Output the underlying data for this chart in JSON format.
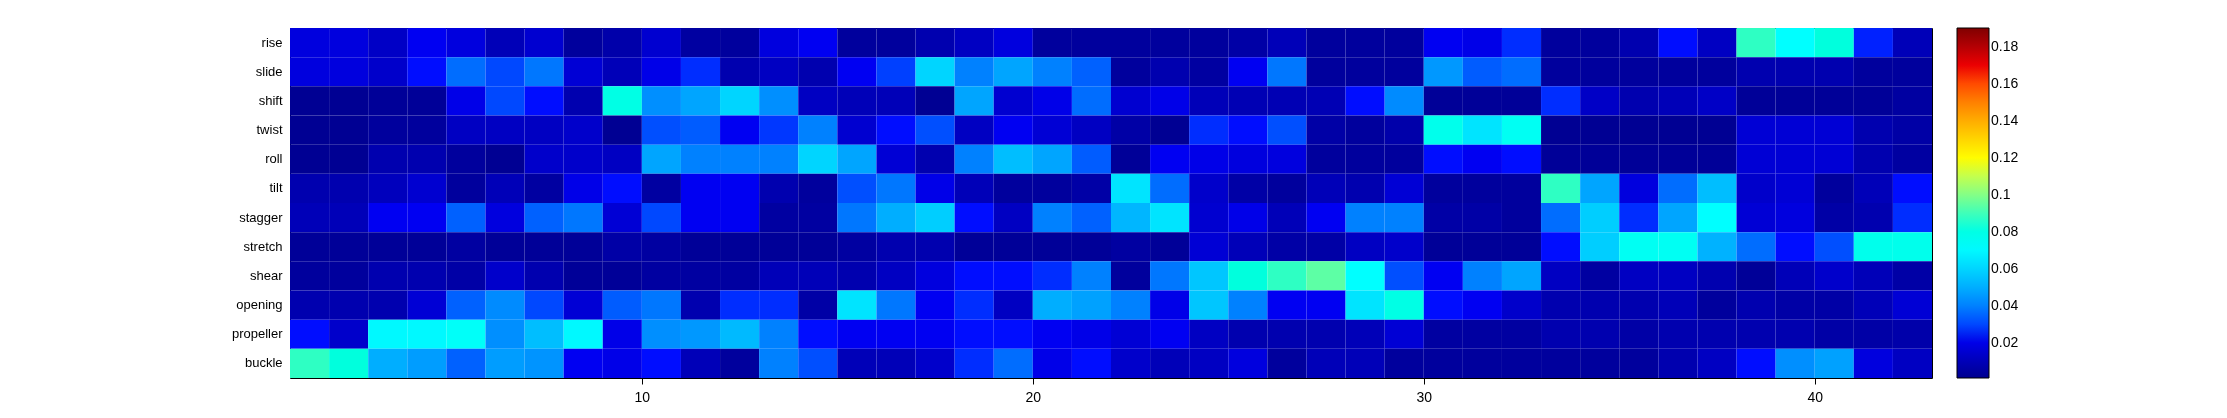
{
  "chart_data": {
    "type": "heatmap",
    "x": [
      1.5,
      2.5,
      3.5,
      4.5,
      5.5,
      6.5,
      7.5,
      8.5,
      9.5,
      10.5,
      11.5,
      12.5,
      13.5,
      14.5,
      15.5,
      16.5,
      17.5,
      18.5,
      19.5,
      20.5,
      21.5,
      22.5,
      23.5,
      24.5,
      25.5,
      26.5,
      27.5,
      28.5,
      29.5,
      30.5,
      31.5,
      32.5,
      33.5,
      34.5,
      35.5,
      36.5,
      37.5,
      38.5,
      39.5,
      40.5,
      41.5,
      42.5
    ],
    "xlim": [
      1,
      43
    ],
    "xticks": [
      10,
      20,
      30,
      40
    ],
    "y_categories": [
      "rise",
      "slide",
      "shift",
      "twist",
      "roll",
      "tilt",
      "stagger",
      "stretch",
      "shear",
      "opening",
      "propeller",
      "buckle"
    ],
    "cells": [
      [
        0.018,
        0.018,
        0.013,
        0.022,
        0.018,
        0.01,
        0.015,
        0.004,
        0.007,
        0.015,
        0.005,
        0.004,
        0.018,
        0.022,
        0.004,
        0.004,
        0.008,
        0.012,
        0.018,
        0.004,
        0.004,
        0.004,
        0.004,
        0.004,
        0.006,
        0.01,
        0.004,
        0.004,
        0.004,
        0.022,
        0.02,
        0.027,
        0.004,
        0.004,
        0.008,
        0.025,
        0.012,
        0.088,
        0.072,
        0.082,
        0.026,
        0.01
      ],
      [
        0.018,
        0.018,
        0.014,
        0.025,
        0.036,
        0.03,
        0.038,
        0.016,
        0.01,
        0.02,
        0.027,
        0.008,
        0.012,
        0.008,
        0.022,
        0.029,
        0.06,
        0.04,
        0.048,
        0.04,
        0.034,
        0.004,
        0.008,
        0.005,
        0.022,
        0.038,
        0.004,
        0.004,
        0.004,
        0.045,
        0.033,
        0.036,
        0.004,
        0.004,
        0.004,
        0.004,
        0.004,
        0.008,
        0.008,
        0.008,
        0.004,
        0.004
      ],
      [
        0.002,
        0.002,
        0.003,
        0.003,
        0.02,
        0.03,
        0.025,
        0.008,
        0.08,
        0.043,
        0.048,
        0.06,
        0.043,
        0.012,
        0.01,
        0.01,
        0.002,
        0.048,
        0.015,
        0.02,
        0.036,
        0.015,
        0.02,
        0.01,
        0.009,
        0.009,
        0.009,
        0.025,
        0.042,
        0.003,
        0.003,
        0.003,
        0.027,
        0.013,
        0.008,
        0.01,
        0.013,
        0.003,
        0.003,
        0.003,
        0.003,
        0.005
      ],
      [
        0.002,
        0.002,
        0.004,
        0.004,
        0.012,
        0.012,
        0.012,
        0.014,
        0.002,
        0.031,
        0.033,
        0.022,
        0.028,
        0.04,
        0.015,
        0.025,
        0.031,
        0.012,
        0.022,
        0.016,
        0.012,
        0.006,
        0.002,
        0.027,
        0.025,
        0.031,
        0.006,
        0.004,
        0.007,
        0.078,
        0.064,
        0.076,
        0.002,
        0.002,
        0.002,
        0.002,
        0.002,
        0.016,
        0.016,
        0.016,
        0.008,
        0.006
      ],
      [
        0.002,
        0.002,
        0.008,
        0.008,
        0.004,
        0.002,
        0.014,
        0.014,
        0.012,
        0.048,
        0.04,
        0.04,
        0.04,
        0.06,
        0.048,
        0.016,
        0.008,
        0.04,
        0.054,
        0.048,
        0.033,
        0.003,
        0.022,
        0.02,
        0.018,
        0.018,
        0.004,
        0.004,
        0.004,
        0.025,
        0.022,
        0.025,
        0.003,
        0.003,
        0.003,
        0.003,
        0.003,
        0.016,
        0.016,
        0.016,
        0.008,
        0.005
      ],
      [
        0.008,
        0.008,
        0.011,
        0.015,
        0.004,
        0.01,
        0.005,
        0.02,
        0.025,
        0.005,
        0.022,
        0.022,
        0.008,
        0.004,
        0.031,
        0.038,
        0.02,
        0.01,
        0.004,
        0.004,
        0.006,
        0.064,
        0.036,
        0.014,
        0.006,
        0.004,
        0.01,
        0.008,
        0.016,
        0.004,
        0.004,
        0.004,
        0.088,
        0.048,
        0.018,
        0.036,
        0.054,
        0.014,
        0.016,
        0.004,
        0.01,
        0.025
      ],
      [
        0.01,
        0.01,
        0.022,
        0.022,
        0.034,
        0.018,
        0.034,
        0.038,
        0.016,
        0.03,
        0.022,
        0.022,
        0.005,
        0.005,
        0.038,
        0.05,
        0.058,
        0.025,
        0.012,
        0.04,
        0.034,
        0.052,
        0.064,
        0.015,
        0.02,
        0.01,
        0.022,
        0.04,
        0.04,
        0.006,
        0.006,
        0.004,
        0.036,
        0.058,
        0.027,
        0.048,
        0.072,
        0.016,
        0.018,
        0.006,
        0.008,
        0.027
      ],
      [
        0.003,
        0.003,
        0.003,
        0.003,
        0.005,
        0.003,
        0.003,
        0.003,
        0.006,
        0.005,
        0.003,
        0.003,
        0.003,
        0.003,
        0.005,
        0.008,
        0.008,
        0.003,
        0.003,
        0.003,
        0.003,
        0.005,
        0.003,
        0.016,
        0.01,
        0.006,
        0.006,
        0.012,
        0.014,
        0.003,
        0.003,
        0.003,
        0.025,
        0.058,
        0.076,
        0.076,
        0.051,
        0.036,
        0.025,
        0.031,
        0.078,
        0.078
      ],
      [
        0.004,
        0.004,
        0.008,
        0.008,
        0.006,
        0.014,
        0.008,
        0.003,
        0.003,
        0.005,
        0.005,
        0.005,
        0.01,
        0.01,
        0.008,
        0.012,
        0.018,
        0.025,
        0.025,
        0.027,
        0.04,
        0.004,
        0.038,
        0.056,
        0.082,
        0.088,
        0.094,
        0.072,
        0.031,
        0.022,
        0.04,
        0.048,
        0.012,
        0.005,
        0.012,
        0.012,
        0.008,
        0.003,
        0.01,
        0.014,
        0.01,
        0.006
      ],
      [
        0.008,
        0.008,
        0.008,
        0.016,
        0.034,
        0.042,
        0.03,
        0.016,
        0.033,
        0.038,
        0.008,
        0.027,
        0.027,
        0.006,
        0.064,
        0.038,
        0.022,
        0.027,
        0.012,
        0.05,
        0.047,
        0.04,
        0.02,
        0.056,
        0.04,
        0.022,
        0.022,
        0.064,
        0.08,
        0.025,
        0.022,
        0.014,
        0.008,
        0.008,
        0.008,
        0.01,
        0.004,
        0.008,
        0.006,
        0.006,
        0.01,
        0.016
      ],
      [
        0.025,
        0.014,
        0.07,
        0.07,
        0.074,
        0.043,
        0.054,
        0.07,
        0.02,
        0.043,
        0.045,
        0.053,
        0.04,
        0.025,
        0.022,
        0.022,
        0.022,
        0.025,
        0.025,
        0.022,
        0.02,
        0.016,
        0.022,
        0.012,
        0.008,
        0.008,
        0.008,
        0.01,
        0.016,
        0.005,
        0.005,
        0.005,
        0.008,
        0.008,
        0.006,
        0.008,
        0.008,
        0.008,
        0.008,
        0.006,
        0.006,
        0.007
      ],
      [
        0.088,
        0.082,
        0.05,
        0.046,
        0.034,
        0.046,
        0.044,
        0.022,
        0.02,
        0.025,
        0.01,
        0.004,
        0.04,
        0.031,
        0.01,
        0.01,
        0.014,
        0.027,
        0.036,
        0.02,
        0.025,
        0.014,
        0.01,
        0.012,
        0.018,
        0.004,
        0.01,
        0.01,
        0.004,
        0.004,
        0.004,
        0.004,
        0.004,
        0.004,
        0.004,
        0.008,
        0.012,
        0.025,
        0.043,
        0.047,
        0.018,
        0.012
      ]
    ],
    "clim": [
      0.001,
      0.19
    ],
    "cticks": [
      0.02,
      0.04,
      0.06,
      0.08,
      0.1,
      0.12,
      0.14,
      0.16,
      0.18
    ]
  }
}
